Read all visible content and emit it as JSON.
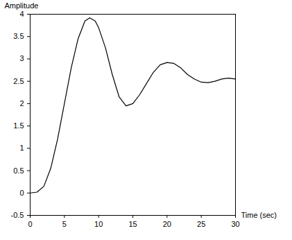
{
  "chart_data": {
    "type": "line",
    "x_label": "Time (sec)",
    "y_label": "Amplitude",
    "x": [
      0,
      1,
      2,
      3,
      4,
      5,
      6,
      7,
      8,
      8.7,
      9.5,
      10,
      11,
      12,
      13,
      14,
      15,
      16,
      17,
      18,
      19,
      20,
      21,
      22,
      23,
      24,
      25,
      26,
      27,
      28,
      29,
      30
    ],
    "values": [
      0,
      0.02,
      0.15,
      0.55,
      1.2,
      2.0,
      2.8,
      3.45,
      3.85,
      3.92,
      3.85,
      3.7,
      3.25,
      2.65,
      2.15,
      1.95,
      2.0,
      2.2,
      2.45,
      2.7,
      2.87,
      2.92,
      2.9,
      2.8,
      2.65,
      2.55,
      2.48,
      2.47,
      2.5,
      2.55,
      2.57,
      2.55
    ],
    "color": "#000000",
    "xlim": [
      0,
      30
    ],
    "ylim": [
      -0.5,
      4
    ],
    "xticks": [
      0,
      5,
      10,
      15,
      20,
      25,
      30
    ],
    "yticks": [
      -0.5,
      0,
      0.5,
      1,
      1.5,
      2,
      2.5,
      3,
      3.5,
      4
    ],
    "grid": false
  }
}
